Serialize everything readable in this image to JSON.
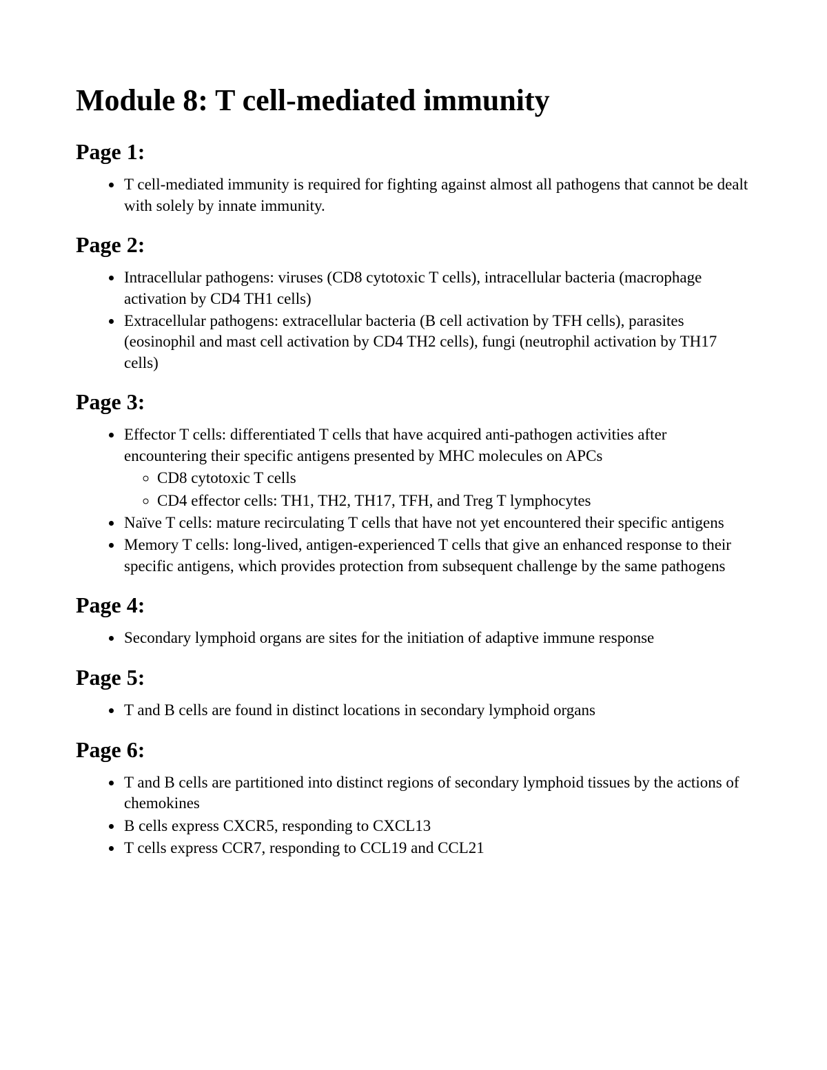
{
  "title": "Module 8: T cell-mediated immunity",
  "sections": [
    {
      "heading": "Page 1:",
      "items": [
        {
          "text": "T cell-mediated immunity is required for fighting against almost all pathogens that cannot be dealt with solely by innate immunity."
        }
      ]
    },
    {
      "heading": "Page 2:",
      "items": [
        {
          "text": "Intracellular pathogens: viruses (CD8 cytotoxic T cells), intracellular bacteria (macrophage activation by CD4 TH1 cells)"
        },
        {
          "text": "Extracellular pathogens: extracellular bacteria (B cell activation by TFH cells), parasites (eosinophil and mast cell activation by CD4 TH2 cells), fungi (neutrophil activation by TH17 cells)"
        }
      ]
    },
    {
      "heading": "Page 3:",
      "items": [
        {
          "text": "Effector T cells: differentiated T cells that have acquired anti-pathogen activities after encountering their specific antigens presented by MHC molecules on APCs",
          "sub": [
            "CD8 cytotoxic T cells",
            "CD4 effector cells: TH1, TH2, TH17, TFH, and Treg T lymphocytes"
          ]
        },
        {
          "text": "Naïve T cells: mature recirculating T cells that have not yet encountered their specific antigens"
        },
        {
          "text": "Memory T cells: long-lived, antigen-experienced T cells that give an enhanced response to their specific antigens, which provides protection from subsequent challenge by the same pathogens"
        }
      ]
    },
    {
      "heading": "Page 4:",
      "items": [
        {
          "text": "Secondary lymphoid organs are sites for the initiation of adaptive immune response"
        }
      ]
    },
    {
      "heading": "Page 5:",
      "items": [
        {
          "text": "T and B cells are found in distinct locations in secondary lymphoid organs"
        }
      ]
    },
    {
      "heading": "Page 6:",
      "items": [
        {
          "text": "T and B cells are partitioned into distinct regions of secondary lymphoid tissues by the actions of chemokines"
        },
        {
          "text": "B cells express CXCR5, responding to CXCL13"
        },
        {
          "text": "T cells express CCR7, responding to CCL19 and CCL21"
        }
      ]
    }
  ]
}
